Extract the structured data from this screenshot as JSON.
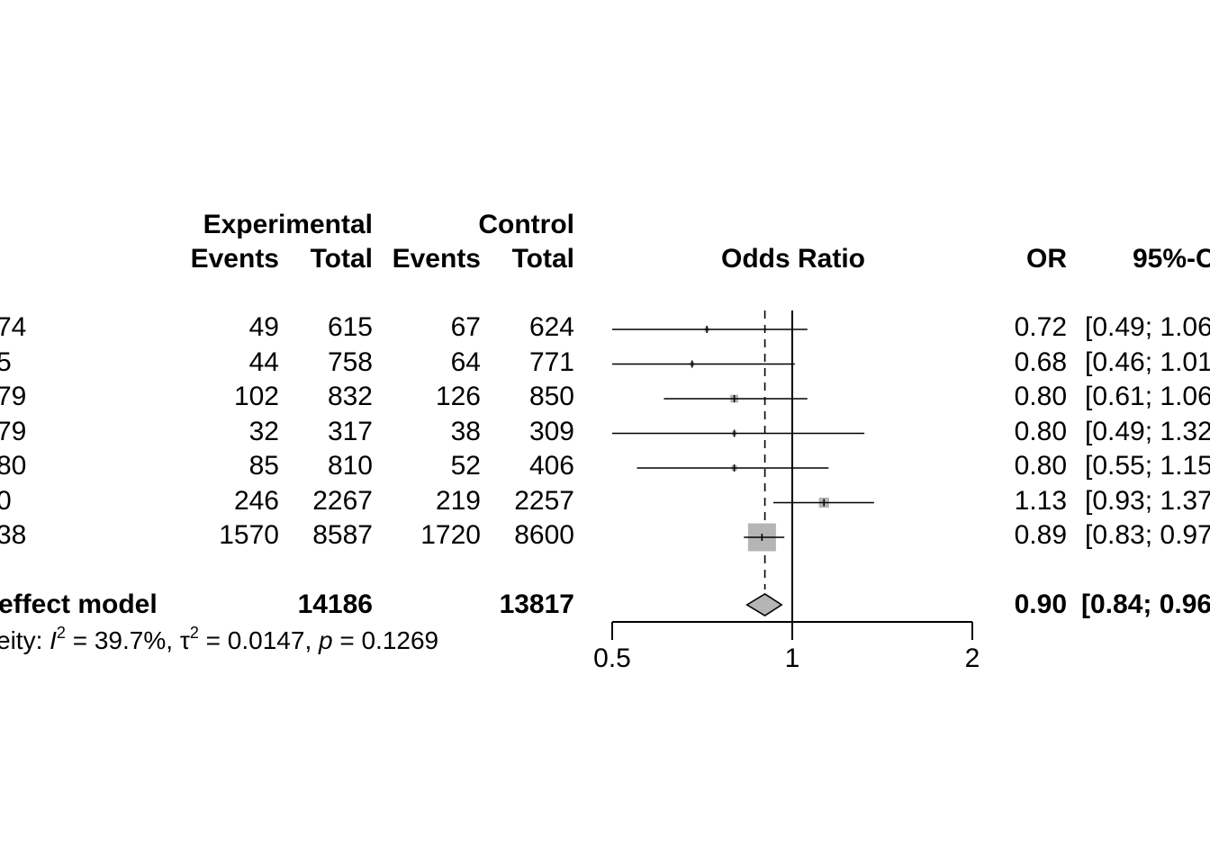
{
  "header": {
    "experimental": "Experimental",
    "control": "Control",
    "events": "Events",
    "total": "Total",
    "odds_ratio": "Odds Ratio",
    "or": "OR",
    "ci": "95%-C"
  },
  "studies": [
    {
      "label": "74",
      "e_events": "49",
      "e_total": "615",
      "c_events": "67",
      "c_total": "624",
      "or_text": "0.72",
      "ci_text": "[0.49; 1.06"
    },
    {
      "label": "5",
      "e_events": "44",
      "e_total": "758",
      "c_events": "64",
      "c_total": "771",
      "or_text": "0.68",
      "ci_text": "[0.46; 1.01"
    },
    {
      "label": "79",
      "e_events": "102",
      "e_total": "832",
      "c_events": "126",
      "c_total": "850",
      "or_text": "0.80",
      "ci_text": "[0.61; 1.06"
    },
    {
      "label": "79",
      "e_events": "32",
      "e_total": "317",
      "c_events": "38",
      "c_total": "309",
      "or_text": "0.80",
      "ci_text": "[0.49; 1.32"
    },
    {
      "label": "80",
      "e_events": "85",
      "e_total": "810",
      "c_events": "52",
      "c_total": "406",
      "or_text": "0.80",
      "ci_text": "[0.55; 1.15"
    },
    {
      "label": "0",
      "e_events": "246",
      "e_total": "2267",
      "c_events": "219",
      "c_total": "2257",
      "or_text": "1.13",
      "ci_text": "[0.93; 1.37"
    },
    {
      "label": "38",
      "e_events": "1570",
      "e_total": "8587",
      "c_events": "1720",
      "c_total": "8600",
      "or_text": "0.89",
      "ci_text": "[0.83; 0.97"
    }
  ],
  "summary": {
    "label": "effect model",
    "e_total": "14186",
    "c_total": "13817",
    "or_text": "0.90",
    "ci_text": "[0.84; 0.96"
  },
  "heterogeneity": {
    "prefix": "eity: ",
    "i_symbol": "I",
    "i_exp": "2",
    "i_value": " = 39.7%, ",
    "tau_symbol": "τ",
    "tau_exp": "2",
    "tau_value": " = 0.0147, ",
    "p_symbol": "p",
    "p_value": " = 0.1269"
  },
  "chart_data": {
    "type": "forest",
    "x_scale": "log",
    "xlim": [
      0.5,
      2
    ],
    "x_ticks": [
      0.5,
      1,
      2
    ],
    "x_tick_labels": [
      "0.5",
      "1",
      "2"
    ],
    "xlabel": "Odds Ratio",
    "reference_line": 1,
    "pooled_line": 0.9,
    "studies": [
      {
        "or": 0.72,
        "lower": 0.49,
        "upper": 1.06,
        "weight": 0.02
      },
      {
        "or": 0.68,
        "lower": 0.46,
        "upper": 1.01,
        "weight": 0.02
      },
      {
        "or": 0.8,
        "lower": 0.61,
        "upper": 1.06,
        "weight": 0.06
      },
      {
        "or": 0.8,
        "lower": 0.49,
        "upper": 1.32,
        "weight": 0.015
      },
      {
        "or": 0.8,
        "lower": 0.55,
        "upper": 1.15,
        "weight": 0.03
      },
      {
        "or": 1.13,
        "lower": 0.93,
        "upper": 1.37,
        "weight": 0.1
      },
      {
        "or": 0.89,
        "lower": 0.83,
        "upper": 0.97,
        "weight": 0.75
      }
    ],
    "summary": {
      "or": 0.9,
      "lower": 0.84,
      "upper": 0.96
    },
    "box_color": "#b5b5b5",
    "diamond_color": "#b5b5b5"
  }
}
